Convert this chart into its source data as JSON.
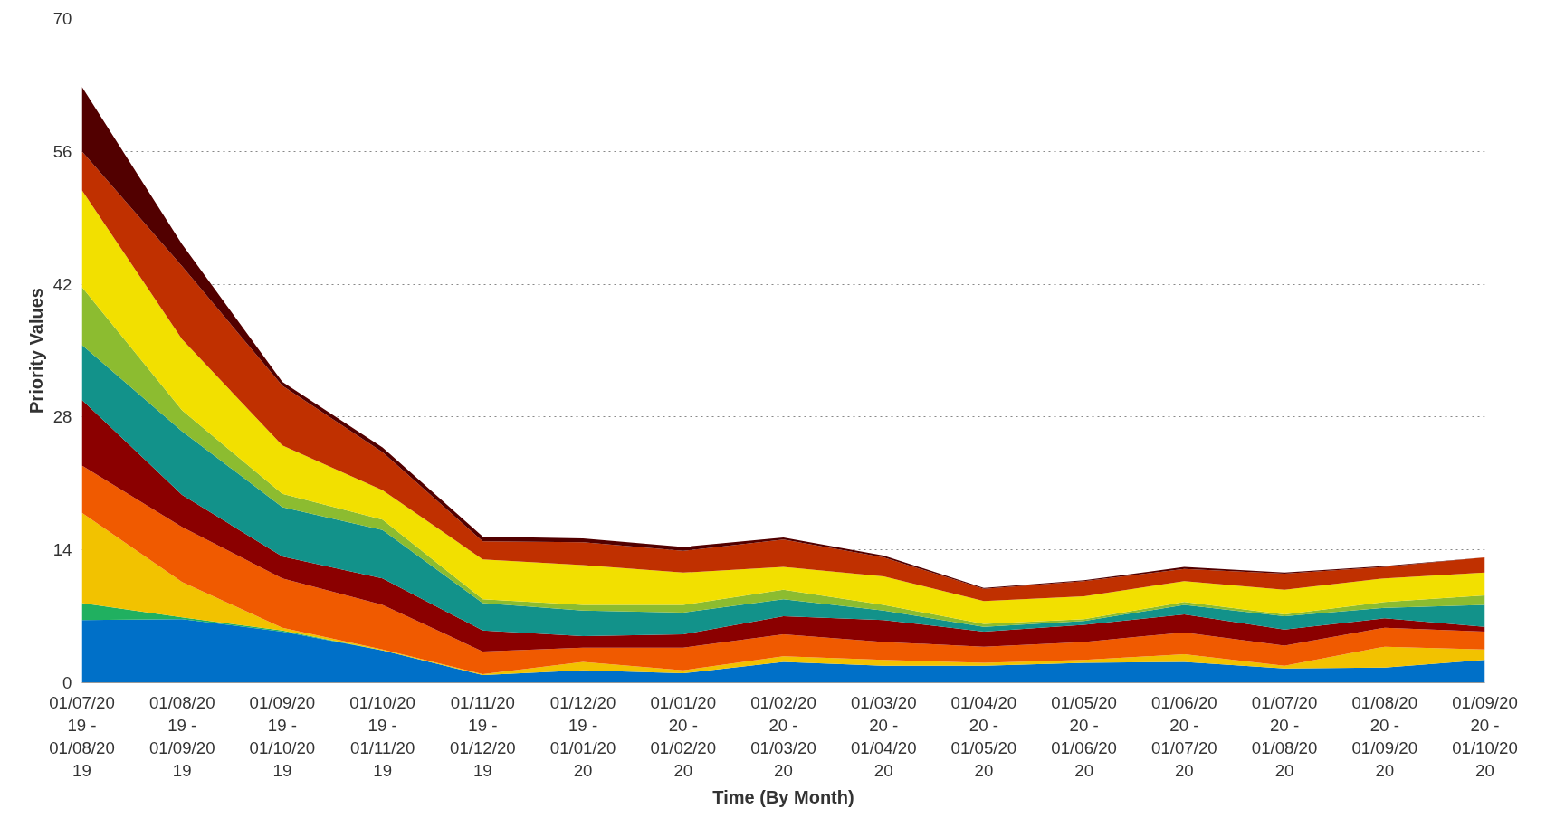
{
  "chart_data": {
    "type": "area",
    "stacked": true,
    "xlabel": "Time (By Month)",
    "ylabel": "Priority Values",
    "categories": [
      "01/07/2019 - 01/08/2019",
      "01/08/2019 - 01/09/2019",
      "01/09/2019 - 01/10/2019",
      "01/10/2019 - 01/11/2019",
      "01/11/2019 - 01/12/2019",
      "01/12/2019 - 01/01/2020",
      "01/01/2020 - 01/02/2020",
      "01/02/2020 - 01/03/2020",
      "01/03/2020 - 01/04/2020",
      "01/04/2020 - 01/05/2020",
      "01/05/2020 - 01/06/2020",
      "01/06/2020 - 01/07/2020",
      "01/07/2020 - 01/08/2020",
      "01/08/2020 - 01/09/2020",
      "01/09/2020 - 01/10/2020"
    ],
    "ylim": [
      0,
      70
    ],
    "yticks": [
      0,
      14,
      28,
      42,
      56,
      70
    ],
    "grid": "y",
    "series": [
      {
        "color": "#0070c8",
        "values": [
          6.6,
          6.7,
          5.4,
          3.4,
          0.8,
          1.3,
          1.0,
          2.2,
          1.8,
          1.8,
          2.1,
          2.2,
          1.5,
          1.6,
          2.4
        ]
      },
      {
        "color": "#20b060",
        "values": [
          1.8,
          0.2,
          0.1,
          0,
          0,
          0,
          0,
          0,
          0,
          0,
          0,
          0,
          0,
          0,
          0
        ]
      },
      {
        "color": "#f2c200",
        "values": [
          9.5,
          3.7,
          0.3,
          0.1,
          0.1,
          0.9,
          0.3,
          0.6,
          0.6,
          0.3,
          0.3,
          0.8,
          0.3,
          2.2,
          1.1
        ]
      },
      {
        "color": "#f05a00",
        "values": [
          5.0,
          5.8,
          5.2,
          4.7,
          2.4,
          1.5,
          2.4,
          2.3,
          1.9,
          1.7,
          1.9,
          2.3,
          2.1,
          2.0,
          1.9
        ]
      },
      {
        "color": "#8b0000",
        "values": [
          6.9,
          3.4,
          2.3,
          2.8,
          2.2,
          1.2,
          1.4,
          1.9,
          2.3,
          1.6,
          1.8,
          1.9,
          1.7,
          1.0,
          0.5
        ]
      },
      {
        "color": "#12928a",
        "values": [
          5.8,
          6.7,
          5.2,
          5.1,
          2.9,
          2.7,
          2.3,
          1.8,
          1.0,
          0.5,
          0.4,
          1.0,
          1.4,
          1.1,
          2.3
        ]
      },
      {
        "color": "#8cbc30",
        "values": [
          6.1,
          2.2,
          1.4,
          1.1,
          0.4,
          0.6,
          0.8,
          1.0,
          0.6,
          0.3,
          0.2,
          0.3,
          0.2,
          0.6,
          1.0
        ]
      },
      {
        "color": "#f2e000",
        "values": [
          10.2,
          7.5,
          5.1,
          3.1,
          4.2,
          4.2,
          3.4,
          2.4,
          3.0,
          2.4,
          2.4,
          2.2,
          2.6,
          2.5,
          2.4
        ]
      },
      {
        "color": "#c03000",
        "values": [
          4.1,
          7.7,
          6.3,
          4.0,
          1.9,
          2.4,
          2.3,
          2.9,
          2.0,
          1.3,
          1.6,
          1.3,
          1.7,
          1.2,
          1.6
        ]
      },
      {
        "color": "#520000",
        "values": [
          6.8,
          2.3,
          0.4,
          0.5,
          0.5,
          0.4,
          0.4,
          0.2,
          0.2,
          0.1,
          0.1,
          0.2,
          0.1,
          0.1,
          0
        ]
      }
    ]
  }
}
